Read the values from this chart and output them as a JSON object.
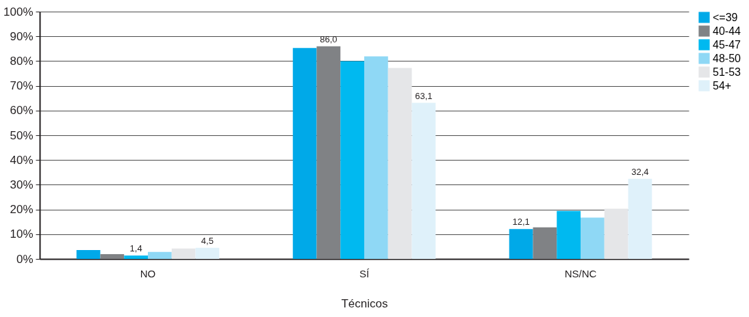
{
  "chart_data": {
    "type": "bar",
    "xlabel": "Técnicos",
    "categories": [
      "NO",
      "SÍ",
      "NS/NC"
    ],
    "series": [
      {
        "name": "<=39",
        "color": "#00a9e8",
        "values": [
          3.6,
          85.3,
          12.1
        ],
        "value_labels": [
          null,
          null,
          "12,1"
        ]
      },
      {
        "name": "40-44",
        "color": "#808285",
        "values": [
          1.9,
          86.0,
          12.8
        ],
        "value_labels": [
          null,
          "86,0",
          null
        ]
      },
      {
        "name": "45-47",
        "color": "#00b9f0",
        "values": [
          1.4,
          80.0,
          19.4
        ],
        "value_labels": [
          "1,4",
          null,
          null
        ]
      },
      {
        "name": "48-50",
        "color": "#8fd8f5",
        "values": [
          2.8,
          81.9,
          16.7
        ],
        "value_labels": [
          null,
          null,
          null
        ]
      },
      {
        "name": "51-53",
        "color": "#e5e6e8",
        "values": [
          4.2,
          77.2,
          20.3
        ],
        "value_labels": [
          null,
          null,
          null
        ]
      },
      {
        "name": "54+",
        "color": "#dff1fa",
        "values": [
          4.5,
          63.1,
          32.4
        ],
        "value_labels": [
          "4,5",
          "63,1",
          "32,4"
        ]
      }
    ],
    "ylim": [
      0,
      100
    ],
    "yticks": [
      {
        "value": 0,
        "label": "0%"
      },
      {
        "value": 10,
        "label": "10%"
      },
      {
        "value": 20,
        "label": "20%"
      },
      {
        "value": 30,
        "label": "30%"
      },
      {
        "value": 40,
        "label": "40%"
      },
      {
        "value": 50,
        "label": "50%"
      },
      {
        "value": 60,
        "label": "60%"
      },
      {
        "value": 70,
        "label": "70%"
      },
      {
        "value": 80,
        "label": "80%"
      },
      {
        "value": 90,
        "label": "90%"
      },
      {
        "value": 100,
        "label": "100%"
      }
    ],
    "grid": "y",
    "legend": "right"
  }
}
